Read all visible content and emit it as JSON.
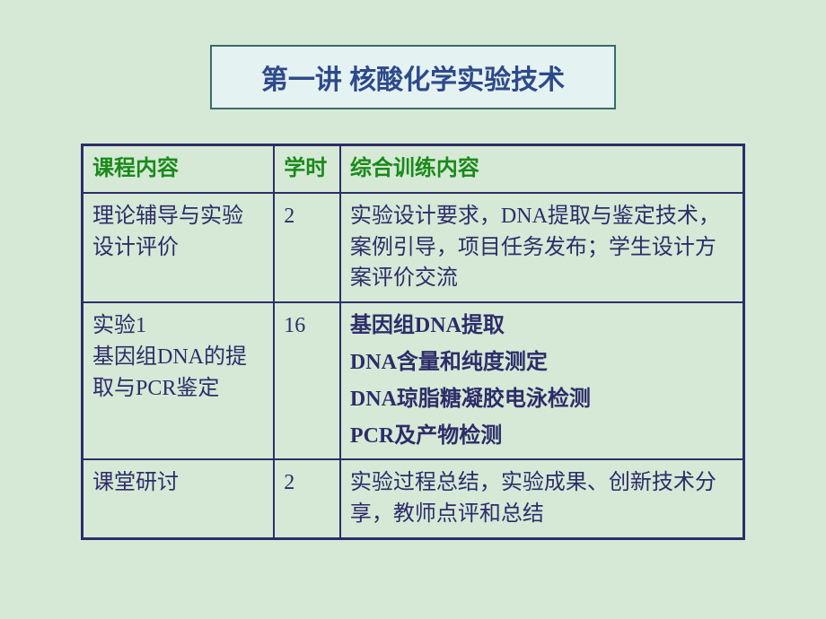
{
  "title": "第一讲 核酸化学实验技术",
  "table": {
    "headers": {
      "course": "课程内容",
      "hours": "学时",
      "training": "综合训练内容"
    },
    "rows": [
      {
        "course": "理论辅导与实验设计评价",
        "hours": "2",
        "details": [
          "实验设计要求，DNA提取与鉴定技术，案例引导，项目任务发布；学生设计方案评价交流"
        ]
      },
      {
        "course_line1": "实验1",
        "course_line2": "基因组DNA的提取与PCR鉴定",
        "hours": "16",
        "details": [
          "基因组DNA提取",
          "DNA含量和纯度测定",
          "DNA琼脂糖凝胶电泳检测",
          "PCR及产物检测"
        ]
      },
      {
        "course": "课堂研讨",
        "hours": "2",
        "details": [
          "实验过程总结，实验成果、创新技术分享，教师点评和总结"
        ]
      }
    ]
  },
  "colors": {
    "background": "#d6e9d6",
    "title_box_bg": "#e5f2f2",
    "title_box_border": "#3a6a6a",
    "title_text": "#2d4a8a",
    "header_text": "#1a8a1a",
    "cell_text": "#2d2d6a",
    "border": "#2d2d6a"
  },
  "fonts": {
    "title_size": 30,
    "cell_size": 24
  }
}
